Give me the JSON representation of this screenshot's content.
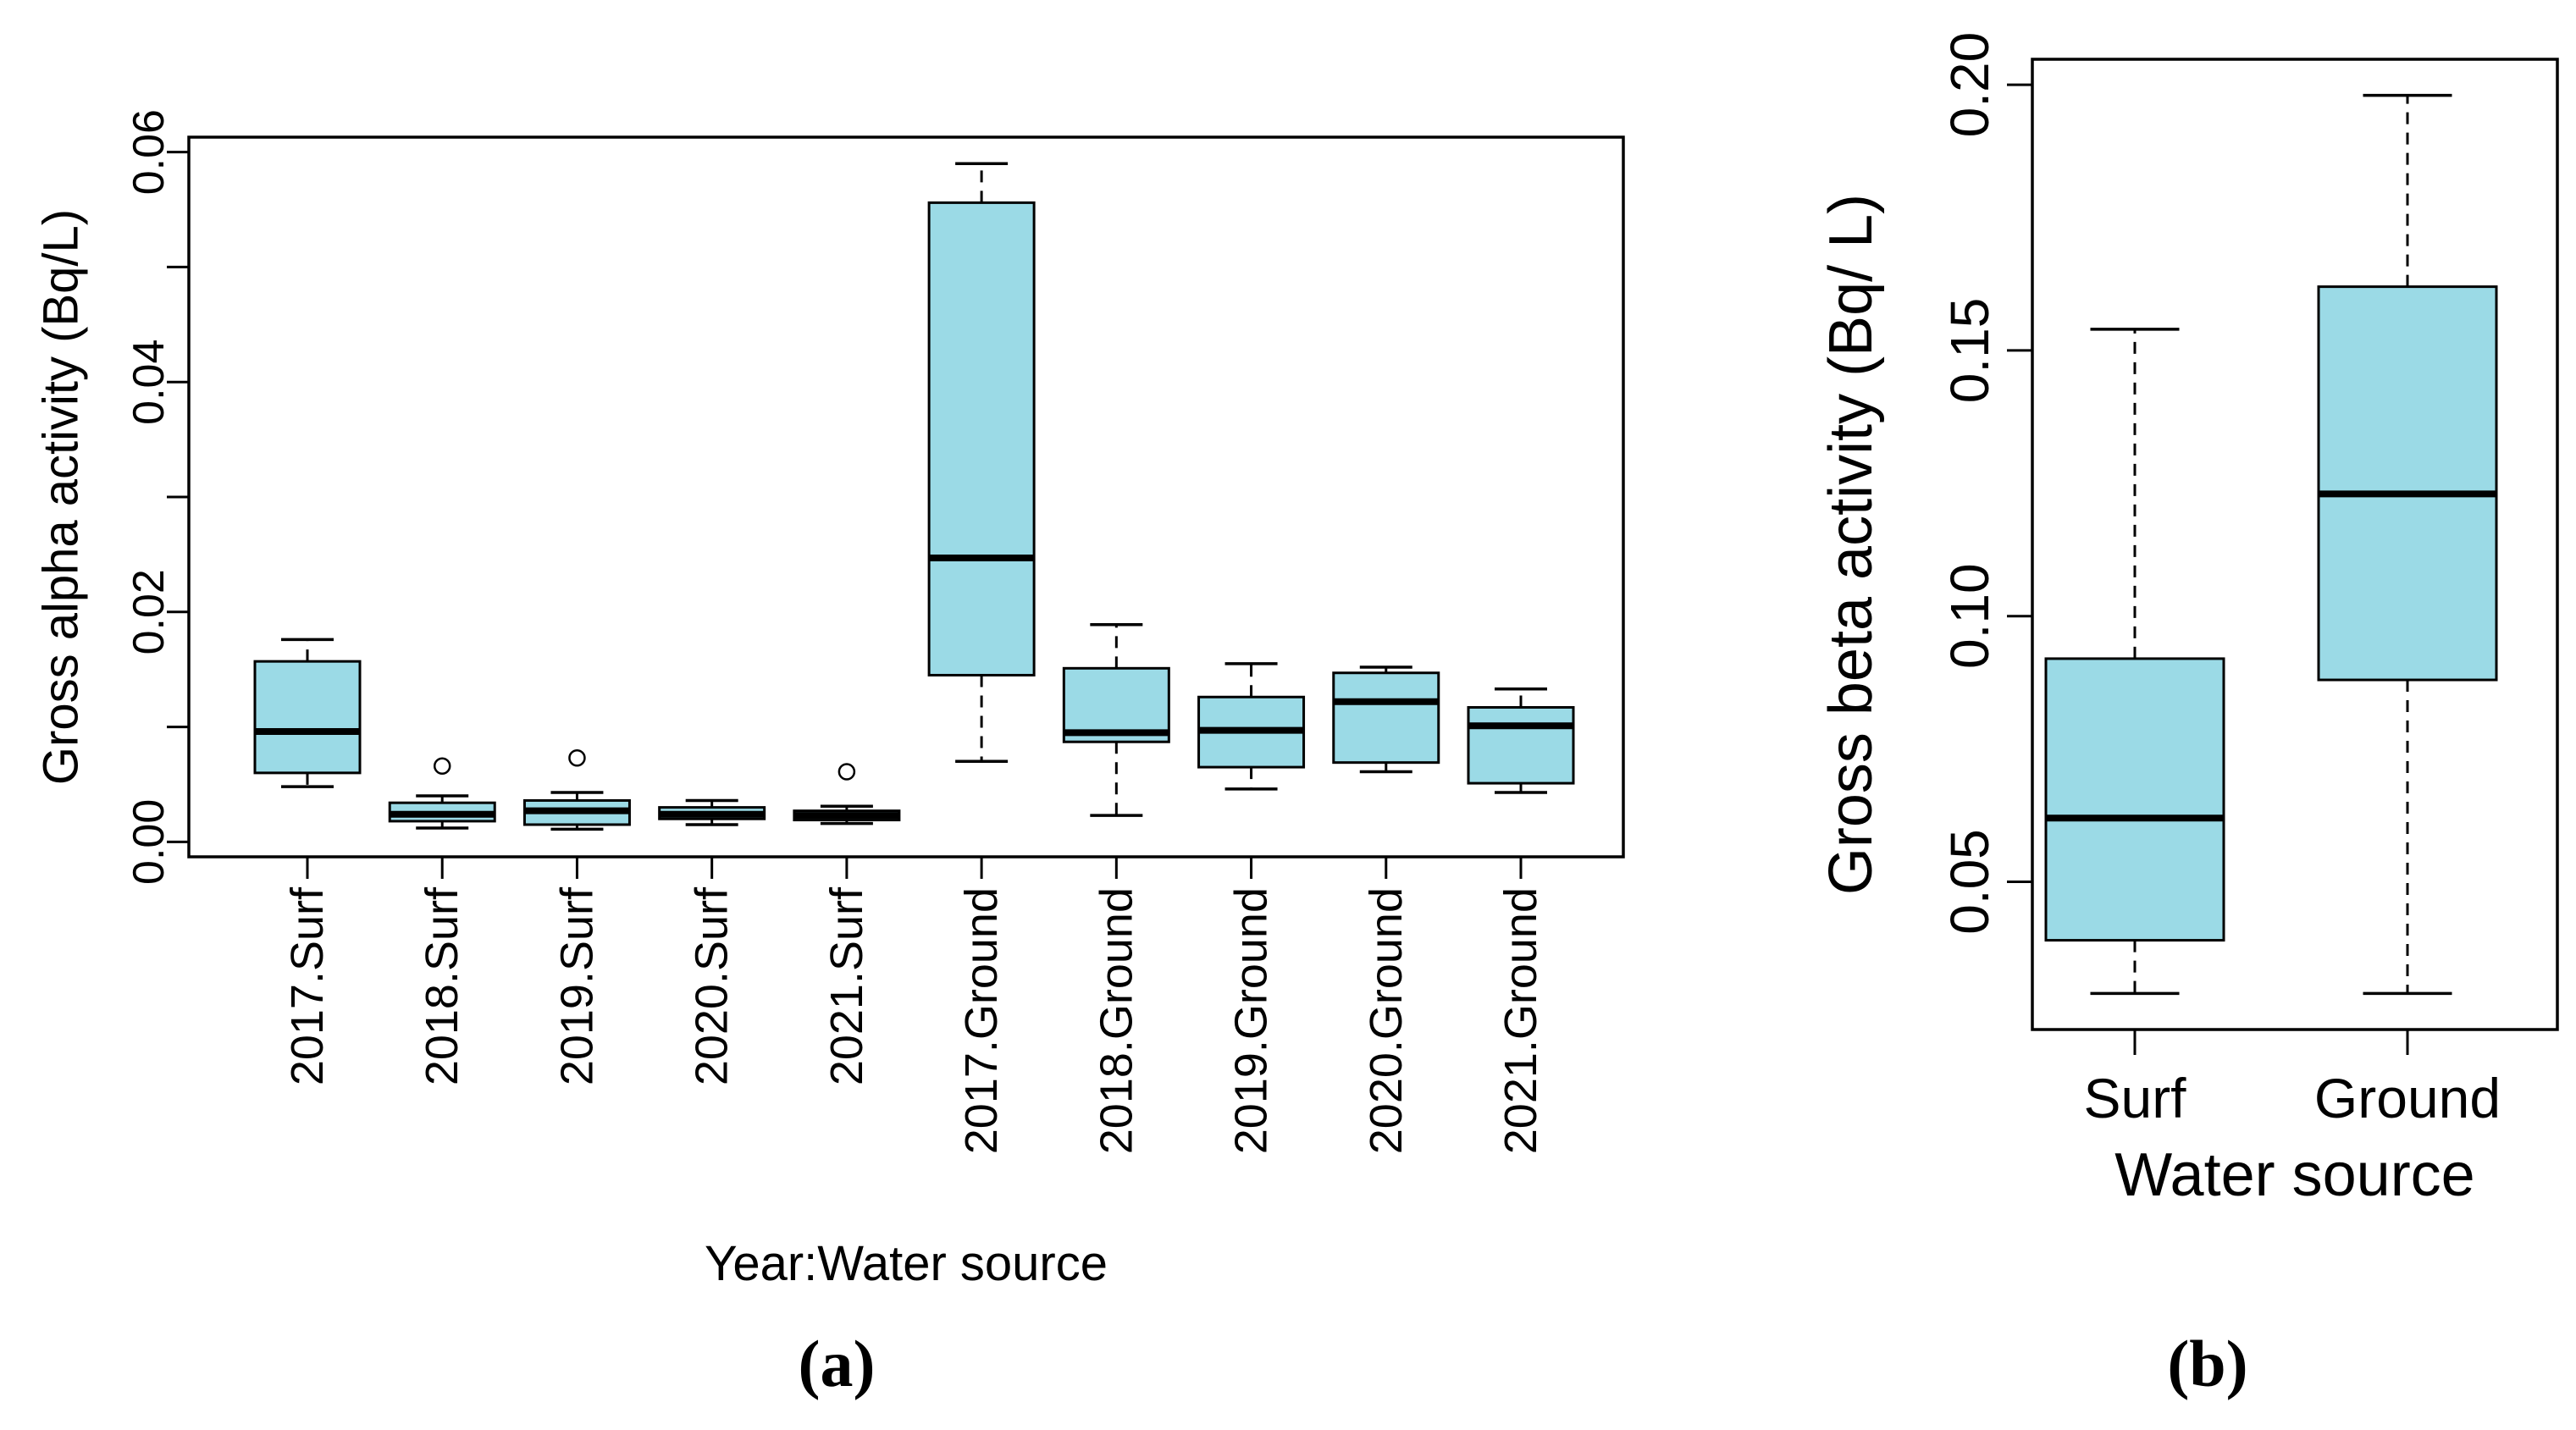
{
  "figure": {
    "background": "#ffffff",
    "captions": {
      "a": "(a)",
      "b": "(b)"
    }
  },
  "chart_data": [
    {
      "id": "a",
      "type": "boxplot",
      "caption": "(a)",
      "title": "",
      "ylabel": "Gross alpha activity (Bq/L)",
      "xlabel": "Year:Water source",
      "ylim": [
        -0.0013,
        0.0613
      ],
      "grid": false,
      "box_fill": "#9bdae6",
      "yticks": [
        {
          "value": 0.0,
          "label": "0.00"
        },
        {
          "value": 0.01,
          "label": ""
        },
        {
          "value": 0.02,
          "label": "0.02"
        },
        {
          "value": 0.03,
          "label": ""
        },
        {
          "value": 0.04,
          "label": "0.04"
        },
        {
          "value": 0.05,
          "label": ""
        },
        {
          "value": 0.06,
          "label": "0.06"
        }
      ],
      "categories": [
        "2017.Surf",
        "2018.Surf",
        "2019.Surf",
        "2020.Surf",
        "2021.Surf",
        "2017.Ground",
        "2018.Ground",
        "2019.Ground",
        "2020.Ground",
        "2021.Ground"
      ],
      "groups": [
        {
          "label": "2017.Surf",
          "whislo": 0.0048,
          "q1": 0.006,
          "med": 0.0096,
          "q3": 0.0157,
          "whishi": 0.0176,
          "outliers": []
        },
        {
          "label": "2018.Surf",
          "whislo": 0.0012,
          "q1": 0.0018,
          "med": 0.0024,
          "q3": 0.0034,
          "whishi": 0.004,
          "outliers": [
            0.0066
          ]
        },
        {
          "label": "2019.Surf",
          "whislo": 0.0011,
          "q1": 0.0015,
          "med": 0.0027,
          "q3": 0.0036,
          "whishi": 0.0043,
          "outliers": [
            0.0073
          ]
        },
        {
          "label": "2020.Surf",
          "whislo": 0.0015,
          "q1": 0.002,
          "med": 0.0024,
          "q3": 0.003,
          "whishi": 0.0036,
          "outliers": []
        },
        {
          "label": "2021.Surf",
          "whislo": 0.0016,
          "q1": 0.0019,
          "med": 0.0023,
          "q3": 0.0027,
          "whishi": 0.0031,
          "outliers": [
            0.0061
          ]
        },
        {
          "label": "2017.Ground",
          "whislo": 0.007,
          "q1": 0.0145,
          "med": 0.0247,
          "q3": 0.0556,
          "whishi": 0.059,
          "outliers": []
        },
        {
          "label": "2018.Ground",
          "whislo": 0.0023,
          "q1": 0.0087,
          "med": 0.0095,
          "q3": 0.0151,
          "whishi": 0.0189,
          "outliers": []
        },
        {
          "label": "2019.Ground",
          "whislo": 0.0046,
          "q1": 0.0065,
          "med": 0.0097,
          "q3": 0.0126,
          "whishi": 0.0155,
          "outliers": []
        },
        {
          "label": "2020.Ground",
          "whislo": 0.0061,
          "q1": 0.0069,
          "med": 0.0122,
          "q3": 0.0147,
          "whishi": 0.0152,
          "outliers": []
        },
        {
          "label": "2021.Ground",
          "whislo": 0.0043,
          "q1": 0.0051,
          "med": 0.0101,
          "q3": 0.0117,
          "whishi": 0.0133,
          "outliers": []
        }
      ]
    },
    {
      "id": "b",
      "type": "boxplot",
      "caption": "(b)",
      "title": "",
      "ylabel": "Gross beta activity (Bq/ L)",
      "xlabel": "Water source",
      "ylim": [
        0.0222,
        0.2048
      ],
      "grid": false,
      "box_fill": "#9bdae6",
      "yticks": [
        {
          "value": 0.05,
          "label": "0.05"
        },
        {
          "value": 0.1,
          "label": "0.10"
        },
        {
          "value": 0.15,
          "label": "0.15"
        },
        {
          "value": 0.2,
          "label": "0.20"
        }
      ],
      "categories": [
        "Surf",
        "Ground"
      ],
      "groups": [
        {
          "label": "Surf",
          "whislo": 0.029,
          "q1": 0.039,
          "med": 0.062,
          "q3": 0.092,
          "whishi": 0.154,
          "outliers": []
        },
        {
          "label": "Ground",
          "whislo": 0.029,
          "q1": 0.088,
          "med": 0.123,
          "q3": 0.162,
          "whishi": 0.198,
          "outliers": []
        }
      ]
    }
  ]
}
